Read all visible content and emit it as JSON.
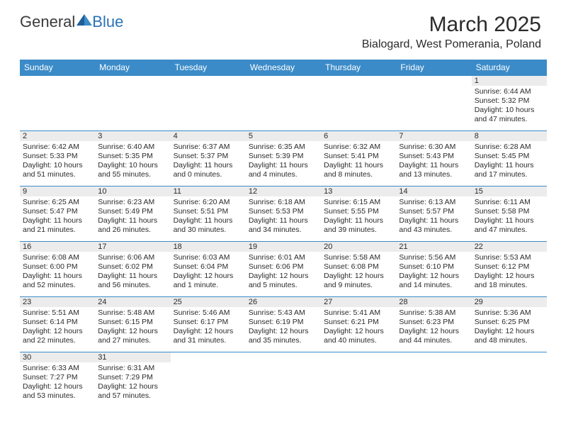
{
  "brand": {
    "part1": "General",
    "part2": "Blue",
    "tri_color": "#2b72b8"
  },
  "title": "March 2025",
  "location": "Bialogard, West Pomerania, Poland",
  "header_bg": "#3b8bc8",
  "days": [
    "Sunday",
    "Monday",
    "Tuesday",
    "Wednesday",
    "Thursday",
    "Friday",
    "Saturday"
  ],
  "weeks": [
    [
      null,
      null,
      null,
      null,
      null,
      null,
      {
        "n": "1",
        "sr": "Sunrise: 6:44 AM",
        "ss": "Sunset: 5:32 PM",
        "dl1": "Daylight: 10 hours",
        "dl2": "and 47 minutes."
      }
    ],
    [
      {
        "n": "2",
        "sr": "Sunrise: 6:42 AM",
        "ss": "Sunset: 5:33 PM",
        "dl1": "Daylight: 10 hours",
        "dl2": "and 51 minutes."
      },
      {
        "n": "3",
        "sr": "Sunrise: 6:40 AM",
        "ss": "Sunset: 5:35 PM",
        "dl1": "Daylight: 10 hours",
        "dl2": "and 55 minutes."
      },
      {
        "n": "4",
        "sr": "Sunrise: 6:37 AM",
        "ss": "Sunset: 5:37 PM",
        "dl1": "Daylight: 11 hours",
        "dl2": "and 0 minutes."
      },
      {
        "n": "5",
        "sr": "Sunrise: 6:35 AM",
        "ss": "Sunset: 5:39 PM",
        "dl1": "Daylight: 11 hours",
        "dl2": "and 4 minutes."
      },
      {
        "n": "6",
        "sr": "Sunrise: 6:32 AM",
        "ss": "Sunset: 5:41 PM",
        "dl1": "Daylight: 11 hours",
        "dl2": "and 8 minutes."
      },
      {
        "n": "7",
        "sr": "Sunrise: 6:30 AM",
        "ss": "Sunset: 5:43 PM",
        "dl1": "Daylight: 11 hours",
        "dl2": "and 13 minutes."
      },
      {
        "n": "8",
        "sr": "Sunrise: 6:28 AM",
        "ss": "Sunset: 5:45 PM",
        "dl1": "Daylight: 11 hours",
        "dl2": "and 17 minutes."
      }
    ],
    [
      {
        "n": "9",
        "sr": "Sunrise: 6:25 AM",
        "ss": "Sunset: 5:47 PM",
        "dl1": "Daylight: 11 hours",
        "dl2": "and 21 minutes."
      },
      {
        "n": "10",
        "sr": "Sunrise: 6:23 AM",
        "ss": "Sunset: 5:49 PM",
        "dl1": "Daylight: 11 hours",
        "dl2": "and 26 minutes."
      },
      {
        "n": "11",
        "sr": "Sunrise: 6:20 AM",
        "ss": "Sunset: 5:51 PM",
        "dl1": "Daylight: 11 hours",
        "dl2": "and 30 minutes."
      },
      {
        "n": "12",
        "sr": "Sunrise: 6:18 AM",
        "ss": "Sunset: 5:53 PM",
        "dl1": "Daylight: 11 hours",
        "dl2": "and 34 minutes."
      },
      {
        "n": "13",
        "sr": "Sunrise: 6:15 AM",
        "ss": "Sunset: 5:55 PM",
        "dl1": "Daylight: 11 hours",
        "dl2": "and 39 minutes."
      },
      {
        "n": "14",
        "sr": "Sunrise: 6:13 AM",
        "ss": "Sunset: 5:57 PM",
        "dl1": "Daylight: 11 hours",
        "dl2": "and 43 minutes."
      },
      {
        "n": "15",
        "sr": "Sunrise: 6:11 AM",
        "ss": "Sunset: 5:58 PM",
        "dl1": "Daylight: 11 hours",
        "dl2": "and 47 minutes."
      }
    ],
    [
      {
        "n": "16",
        "sr": "Sunrise: 6:08 AM",
        "ss": "Sunset: 6:00 PM",
        "dl1": "Daylight: 11 hours",
        "dl2": "and 52 minutes."
      },
      {
        "n": "17",
        "sr": "Sunrise: 6:06 AM",
        "ss": "Sunset: 6:02 PM",
        "dl1": "Daylight: 11 hours",
        "dl2": "and 56 minutes."
      },
      {
        "n": "18",
        "sr": "Sunrise: 6:03 AM",
        "ss": "Sunset: 6:04 PM",
        "dl1": "Daylight: 12 hours",
        "dl2": "and 1 minute."
      },
      {
        "n": "19",
        "sr": "Sunrise: 6:01 AM",
        "ss": "Sunset: 6:06 PM",
        "dl1": "Daylight: 12 hours",
        "dl2": "and 5 minutes."
      },
      {
        "n": "20",
        "sr": "Sunrise: 5:58 AM",
        "ss": "Sunset: 6:08 PM",
        "dl1": "Daylight: 12 hours",
        "dl2": "and 9 minutes."
      },
      {
        "n": "21",
        "sr": "Sunrise: 5:56 AM",
        "ss": "Sunset: 6:10 PM",
        "dl1": "Daylight: 12 hours",
        "dl2": "and 14 minutes."
      },
      {
        "n": "22",
        "sr": "Sunrise: 5:53 AM",
        "ss": "Sunset: 6:12 PM",
        "dl1": "Daylight: 12 hours",
        "dl2": "and 18 minutes."
      }
    ],
    [
      {
        "n": "23",
        "sr": "Sunrise: 5:51 AM",
        "ss": "Sunset: 6:14 PM",
        "dl1": "Daylight: 12 hours",
        "dl2": "and 22 minutes."
      },
      {
        "n": "24",
        "sr": "Sunrise: 5:48 AM",
        "ss": "Sunset: 6:15 PM",
        "dl1": "Daylight: 12 hours",
        "dl2": "and 27 minutes."
      },
      {
        "n": "25",
        "sr": "Sunrise: 5:46 AM",
        "ss": "Sunset: 6:17 PM",
        "dl1": "Daylight: 12 hours",
        "dl2": "and 31 minutes."
      },
      {
        "n": "26",
        "sr": "Sunrise: 5:43 AM",
        "ss": "Sunset: 6:19 PM",
        "dl1": "Daylight: 12 hours",
        "dl2": "and 35 minutes."
      },
      {
        "n": "27",
        "sr": "Sunrise: 5:41 AM",
        "ss": "Sunset: 6:21 PM",
        "dl1": "Daylight: 12 hours",
        "dl2": "and 40 minutes."
      },
      {
        "n": "28",
        "sr": "Sunrise: 5:38 AM",
        "ss": "Sunset: 6:23 PM",
        "dl1": "Daylight: 12 hours",
        "dl2": "and 44 minutes."
      },
      {
        "n": "29",
        "sr": "Sunrise: 5:36 AM",
        "ss": "Sunset: 6:25 PM",
        "dl1": "Daylight: 12 hours",
        "dl2": "and 48 minutes."
      }
    ],
    [
      {
        "n": "30",
        "sr": "Sunrise: 6:33 AM",
        "ss": "Sunset: 7:27 PM",
        "dl1": "Daylight: 12 hours",
        "dl2": "and 53 minutes."
      },
      {
        "n": "31",
        "sr": "Sunrise: 6:31 AM",
        "ss": "Sunset: 7:29 PM",
        "dl1": "Daylight: 12 hours",
        "dl2": "and 57 minutes."
      },
      null,
      null,
      null,
      null,
      null
    ]
  ]
}
